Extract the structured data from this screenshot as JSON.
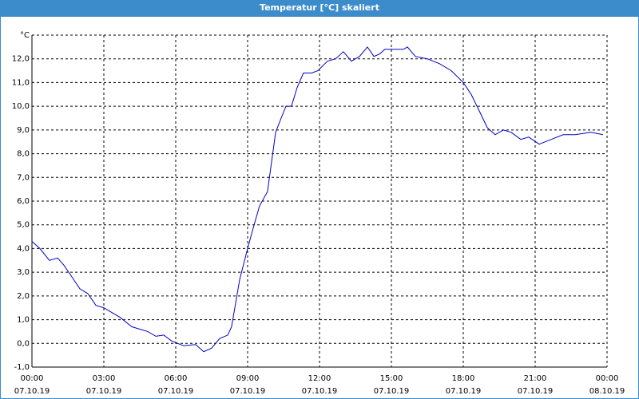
{
  "chart_data": {
    "type": "line",
    "title": "Temperatur [°C] skaliert",
    "x": [
      0,
      0.33,
      0.73,
      1.07,
      1.33,
      1.67,
      2.0,
      2.33,
      2.67,
      3.0,
      3.67,
      4.17,
      4.83,
      5.17,
      5.5,
      5.83,
      6.33,
      6.83,
      7.17,
      7.5,
      7.83,
      8.17,
      8.33,
      8.67,
      9.0,
      9.27,
      9.5,
      9.83,
      10.17,
      10.4,
      10.6,
      10.83,
      11.07,
      11.33,
      11.67,
      11.93,
      12.33,
      12.67,
      13.0,
      13.33,
      13.67,
      14.0,
      14.27,
      14.5,
      14.73,
      15.17,
      15.5,
      15.67,
      16.0,
      16.5,
      17.0,
      17.5,
      18.0,
      18.33,
      18.67,
      19.0,
      19.33,
      19.67,
      20.0,
      20.4,
      20.73,
      21.17,
      21.67,
      22.17,
      22.67,
      23.33,
      23.83
    ],
    "series": [
      {
        "color": "#0000c0",
        "values": [
          4.3,
          4.0,
          3.5,
          3.6,
          3.3,
          2.8,
          2.3,
          2.1,
          1.6,
          1.5,
          1.1,
          0.7,
          0.5,
          0.3,
          0.35,
          0.1,
          -0.1,
          -0.05,
          -0.35,
          -0.2,
          0.2,
          0.35,
          0.7,
          2.7,
          4.0,
          5.0,
          5.8,
          6.4,
          8.9,
          9.5,
          10.0,
          10.0,
          10.8,
          11.4,
          11.4,
          11.5,
          11.9,
          12.0,
          12.3,
          11.9,
          12.1,
          12.5,
          12.1,
          12.2,
          12.4,
          12.4,
          12.4,
          12.5,
          12.1,
          12.0,
          11.8,
          11.5,
          11.0,
          10.5,
          9.8,
          9.1,
          8.8,
          9.0,
          8.9,
          8.6,
          8.7,
          8.4,
          8.6,
          8.8,
          8.8,
          8.9,
          8.8
        ]
      }
    ],
    "xlim": [
      0,
      24
    ],
    "xticks": [
      {
        "value": 0,
        "label": "00:00",
        "date": "07.10.19"
      },
      {
        "value": 3,
        "label": "03:00",
        "date": "07.10.19"
      },
      {
        "value": 6,
        "label": "06:00",
        "date": "07.10.19"
      },
      {
        "value": 9,
        "label": "09:00",
        "date": "07.10.19"
      },
      {
        "value": 12,
        "label": "12:00",
        "date": "07.10.19"
      },
      {
        "value": 15,
        "label": "15:00",
        "date": "07.10.19"
      },
      {
        "value": 18,
        "label": "18:00",
        "date": "07.10.19"
      },
      {
        "value": 21,
        "label": "21:00",
        "date": "07.10.19"
      },
      {
        "value": 24,
        "label": "00:00",
        "date": "08.10.19"
      }
    ],
    "ylim": [
      -1,
      13
    ],
    "yticks": [
      {
        "value": -1,
        "label": "-1,0"
      },
      {
        "value": 0,
        "label": "0,0"
      },
      {
        "value": 1,
        "label": "1,0"
      },
      {
        "value": 2,
        "label": "2,0"
      },
      {
        "value": 3,
        "label": "3,0"
      },
      {
        "value": 4,
        "label": "4,0"
      },
      {
        "value": 5,
        "label": "5,0"
      },
      {
        "value": 6,
        "label": "6,0"
      },
      {
        "value": 7,
        "label": "7,0"
      },
      {
        "value": 8,
        "label": "8,0"
      },
      {
        "value": 9,
        "label": "9,0"
      },
      {
        "value": 10,
        "label": "10,0"
      },
      {
        "value": 11,
        "label": "11,0"
      },
      {
        "value": 12,
        "label": "12,0"
      },
      {
        "value": 13,
        "label": "°C"
      }
    ],
    "grid": true
  }
}
